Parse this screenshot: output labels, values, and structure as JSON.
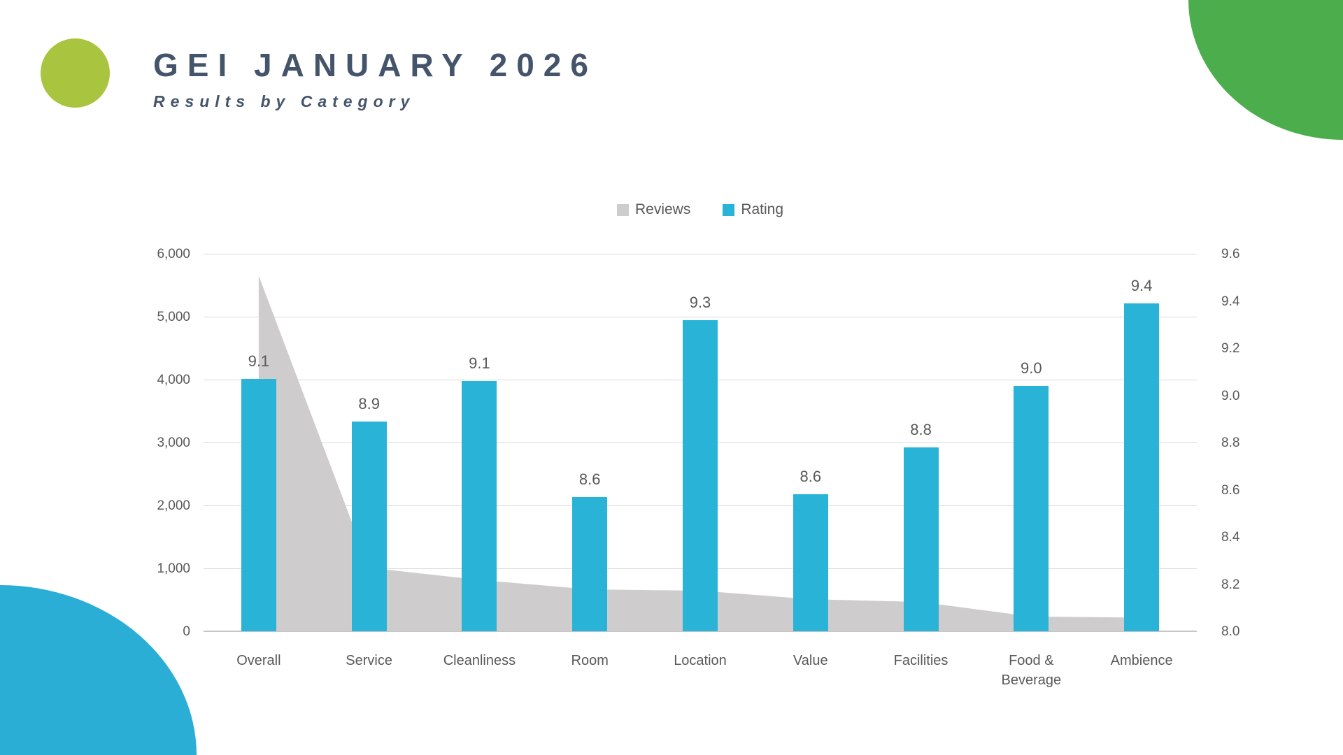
{
  "header": {
    "title": "GEI JANUARY 2026",
    "subtitle": "Results by Category",
    "text_color": "#44546A"
  },
  "decorations": {
    "circle_color": "#A9C43F",
    "corner_top_right_color": "#4BAD4C",
    "corner_bottom_left_color": "#2BAED5"
  },
  "legend": {
    "position": "top-center",
    "items": [
      {
        "label": "Reviews",
        "color": "#CECCCC"
      },
      {
        "label": "Rating",
        "color": "#29B3D7"
      }
    ]
  },
  "chart_data": {
    "type": "combo",
    "title": "GEI JANUARY 2026 — Results by Category",
    "categories": [
      "Overall",
      "Service",
      "Cleanliness",
      "Room",
      "Location",
      "Value",
      "Facilities",
      "Food & Beverage",
      "Ambience"
    ],
    "series": [
      {
        "name": "Reviews",
        "type": "area",
        "axis": "left",
        "color": "#CECCCC",
        "values": [
          5650,
          1010,
          815,
          665,
          645,
          510,
          465,
          235,
          215
        ]
      },
      {
        "name": "Rating",
        "type": "bar",
        "axis": "right",
        "color": "#29B3D7",
        "values": [
          9.1,
          8.9,
          9.1,
          8.6,
          9.3,
          8.6,
          8.8,
          9.0,
          9.4
        ],
        "labels": [
          "9.1",
          "8.9",
          "9.1",
          "8.6",
          "9.3",
          "8.6",
          "8.8",
          "9.0",
          "9.4"
        ],
        "values_precise": [
          9.07,
          8.89,
          9.06,
          8.57,
          9.32,
          8.58,
          8.78,
          9.04,
          9.39
        ]
      }
    ],
    "left_axis": {
      "min": 0,
      "max": 6000,
      "ticks": [
        "0",
        "1,000",
        "2,000",
        "3,000",
        "4,000",
        "5,000",
        "6,000"
      ]
    },
    "right_axis": {
      "min": 8.0,
      "max": 9.6,
      "ticks": [
        "8.0",
        "8.2",
        "8.4",
        "8.6",
        "8.8",
        "9.0",
        "9.2",
        "9.4",
        "9.6"
      ]
    },
    "grid": "horizontal gridlines aligned to left axis",
    "legend_position": "top-center",
    "text_color": "#595959"
  }
}
